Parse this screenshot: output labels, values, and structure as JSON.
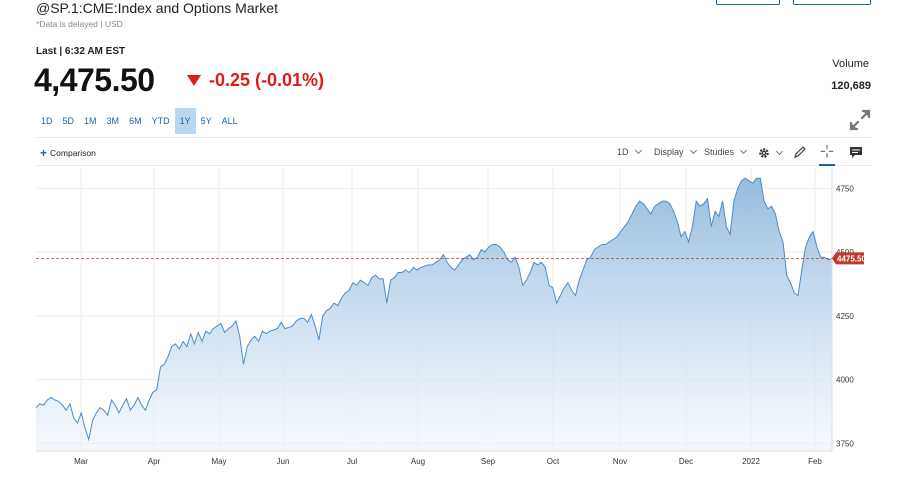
{
  "header": {
    "title": "@SP.1:CME:Index and Options Market",
    "delay_note": "*Data is delayed | USD"
  },
  "quote": {
    "last_label": "Last | 6:32 AM EST",
    "price": "4,475.50",
    "change": "-0.25 (-0.01%)",
    "direction": "down",
    "color_down": "#d91e18",
    "volume_label": "Volume",
    "volume_value": "120,689"
  },
  "ranges": [
    {
      "label": "1D",
      "active": false
    },
    {
      "label": "5D",
      "active": false
    },
    {
      "label": "1M",
      "active": false
    },
    {
      "label": "3M",
      "active": false
    },
    {
      "label": "6M",
      "active": false
    },
    {
      "label": "YTD",
      "active": false
    },
    {
      "label": "1Y",
      "active": true
    },
    {
      "label": "5Y",
      "active": false
    },
    {
      "label": "ALL",
      "active": false
    }
  ],
  "toolbar": {
    "comparison_label": "Comparison",
    "interval_label": "1D",
    "display_label": "Display",
    "studies_label": "Studies",
    "icons": [
      "gear-icon",
      "pencil-icon",
      "crosshair-icon",
      "comment-icon"
    ]
  },
  "chart_data": {
    "type": "area",
    "title": "",
    "xlabel": "",
    "ylabel": "",
    "ylim": [
      3720,
      4830
    ],
    "y_ticks": [
      3750,
      4000,
      4250,
      4500,
      4750
    ],
    "x_ticks": [
      "Mar",
      "Apr",
      "May",
      "Jun",
      "Jul",
      "Aug",
      "Sep",
      "Oct",
      "Nov",
      "Dec",
      "2022",
      "Feb"
    ],
    "last_value": 4475.5,
    "last_value_label": "4475.50",
    "line_color": "#4a8cc7",
    "marker_color": "#c0392b",
    "grid": true,
    "series": [
      {
        "values": [
          3890,
          3905,
          3900,
          3920,
          3930,
          3920,
          3915,
          3900,
          3880,
          3905,
          3850,
          3830,
          3870,
          3810,
          3765,
          3840,
          3870,
          3890,
          3880,
          3860,
          3920,
          3900,
          3870,
          3900,
          3925,
          3880,
          3900,
          3930,
          3900,
          3880,
          3920,
          3950,
          3960,
          4050,
          4060,
          4090,
          4130,
          4140,
          4120,
          4150,
          4130,
          4180,
          4140,
          4185,
          4150,
          4190,
          4180,
          4200,
          4210,
          4220,
          4185,
          4200,
          4210,
          4230,
          4170,
          4060,
          4130,
          4155,
          4170,
          4150,
          4190,
          4180,
          4190,
          4195,
          4200,
          4225,
          4200,
          4205,
          4210,
          4230,
          4240,
          4240,
          4225,
          4255,
          4210,
          4155,
          4250,
          4270,
          4280,
          4300,
          4290,
          4320,
          4340,
          4350,
          4380,
          4370,
          4390,
          4380,
          4370,
          4400,
          4410,
          4395,
          4395,
          4300,
          4390,
          4400,
          4420,
          4420,
          4430,
          4420,
          4440,
          4430,
          4440,
          4445,
          4450,
          4450,
          4460,
          4470,
          4490,
          4460,
          4440,
          4430,
          4450,
          4470,
          4480,
          4490,
          4470,
          4480,
          4510,
          4500,
          4520,
          4530,
          4530,
          4520,
          4500,
          4470,
          4460,
          4480,
          4440,
          4370,
          4390,
          4420,
          4460,
          4450,
          4460,
          4440,
          4370,
          4360,
          4300,
          4330,
          4360,
          4380,
          4350,
          4330,
          4390,
          4430,
          4470,
          4480,
          4510,
          4520,
          4530,
          4530,
          4540,
          4550,
          4560,
          4580,
          4600,
          4620,
          4650,
          4680,
          4700,
          4690,
          4670,
          4650,
          4680,
          4690,
          4700,
          4700,
          4690,
          4660,
          4620,
          4560,
          4580,
          4540,
          4600,
          4700,
          4680,
          4690,
          4710,
          4600,
          4660,
          4640,
          4700,
          4600,
          4570,
          4700,
          4750,
          4780,
          4790,
          4780,
          4770,
          4790,
          4790,
          4700,
          4670,
          4680,
          4650,
          4580,
          4540,
          4410,
          4380,
          4340,
          4330,
          4430,
          4520,
          4560,
          4580,
          4520,
          4480,
          4480,
          4470,
          4475
        ]
      }
    ]
  }
}
